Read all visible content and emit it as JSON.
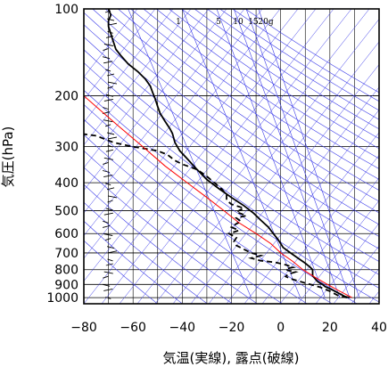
{
  "chart_data": {
    "type": "line",
    "title": "",
    "xlabel": "気温(実線), 露点(破線)",
    "ylabel": "気圧(hPa)",
    "xlim": [
      -80,
      40
    ],
    "ylim_hpa": [
      1050,
      100
    ],
    "y_scale": "log",
    "x_ticks": [
      -80,
      -60,
      -40,
      -20,
      0,
      20,
      40
    ],
    "y_ticks": [
      100,
      200,
      300,
      400,
      500,
      600,
      700,
      800,
      900,
      1000
    ],
    "mixing_ratio_labels": [
      "1",
      "5",
      "10",
      "15",
      "20g"
    ],
    "colors": {
      "temperature": "#000000",
      "dewpoint": "#000000",
      "parcel": "#ff0000",
      "isotherm_isobar": "#000000",
      "adiabats": "#3a3ae8"
    },
    "series": [
      {
        "type": "solid",
        "points": [
          [
            28,
            1000
          ],
          [
            26,
            990
          ],
          [
            24,
            970
          ],
          [
            21,
            940
          ],
          [
            18,
            915
          ],
          [
            17,
            900
          ],
          [
            15,
            880
          ],
          [
            14,
            860
          ],
          [
            13,
            840
          ],
          [
            13,
            820
          ],
          [
            13,
            800
          ],
          [
            12,
            785
          ],
          [
            10,
            760
          ],
          [
            7,
            730
          ],
          [
            5,
            710
          ],
          [
            3,
            690
          ],
          [
            1,
            670
          ],
          [
            0,
            650
          ],
          [
            -1,
            630
          ],
          [
            -3,
            600
          ],
          [
            -5,
            570
          ],
          [
            -8,
            540
          ],
          [
            -11,
            510
          ],
          [
            -15,
            480
          ],
          [
            -20,
            450
          ],
          [
            -25,
            420
          ],
          [
            -30,
            390
          ],
          [
            -34,
            360
          ],
          [
            -38,
            330
          ],
          [
            -41,
            310
          ],
          [
            -43,
            290
          ],
          [
            -44,
            270
          ],
          [
            -45,
            260
          ],
          [
            -47,
            245
          ],
          [
            -49,
            230
          ],
          [
            -50,
            218
          ],
          [
            -51,
            205
          ],
          [
            -52,
            195
          ],
          [
            -53,
            185
          ],
          [
            -55,
            175
          ],
          [
            -58,
            165
          ],
          [
            -62,
            155
          ],
          [
            -65,
            145
          ],
          [
            -67,
            138
          ],
          [
            -68,
            130
          ],
          [
            -69,
            122
          ],
          [
            -70,
            115
          ],
          [
            -70,
            110
          ],
          [
            -69,
            105
          ],
          [
            -70,
            100
          ]
        ]
      },
      {
        "type": "dashed",
        "points": [
          [
            27,
            1000
          ],
          [
            24,
            990
          ],
          [
            22,
            970
          ],
          [
            20,
            950
          ],
          [
            16,
            920
          ],
          [
            12,
            900
          ],
          [
            8,
            880
          ],
          [
            4,
            860
          ],
          [
            2,
            845
          ],
          [
            3,
            830
          ],
          [
            6,
            815
          ],
          [
            3,
            805
          ],
          [
            2,
            795
          ],
          [
            5,
            785
          ],
          [
            2,
            770
          ],
          [
            -2,
            755
          ],
          [
            -8,
            745
          ],
          [
            -12,
            730
          ],
          [
            -8,
            715
          ],
          [
            -12,
            700
          ],
          [
            -15,
            680
          ],
          [
            -18,
            660
          ],
          [
            -19,
            640
          ],
          [
            -18,
            620
          ],
          [
            -21,
            600
          ],
          [
            -17,
            585
          ],
          [
            -20,
            570
          ],
          [
            -18,
            555
          ],
          [
            -16,
            545
          ],
          [
            -18,
            530
          ],
          [
            -14,
            520
          ],
          [
            -18,
            505
          ],
          [
            -15,
            490
          ],
          [
            -20,
            475
          ],
          [
            -22,
            460
          ],
          [
            -22,
            440
          ],
          [
            -24,
            420
          ],
          [
            -27,
            400
          ],
          [
            -30,
            380
          ],
          [
            -34,
            360
          ],
          [
            -40,
            345
          ],
          [
            -43,
            335
          ],
          [
            -46,
            320
          ],
          [
            -50,
            310
          ],
          [
            -60,
            300
          ],
          [
            -68,
            290
          ],
          [
            -75,
            275
          ],
          [
            -82,
            270
          ]
        ]
      },
      {
        "type": "parcel",
        "points": [
          [
            29,
            1000
          ],
          [
            24,
            950
          ],
          [
            19,
            900
          ],
          [
            14,
            850
          ],
          [
            9,
            800
          ],
          [
            5,
            750
          ],
          [
            0,
            700
          ],
          [
            -4,
            650
          ],
          [
            -10,
            600
          ],
          [
            -17,
            550
          ],
          [
            -23,
            500
          ],
          [
            -30,
            450
          ],
          [
            -38,
            400
          ],
          [
            -47,
            350
          ],
          [
            -56,
            300
          ],
          [
            -67,
            250
          ],
          [
            -80,
            200
          ],
          [
            -95,
            150
          ]
        ]
      }
    ]
  }
}
